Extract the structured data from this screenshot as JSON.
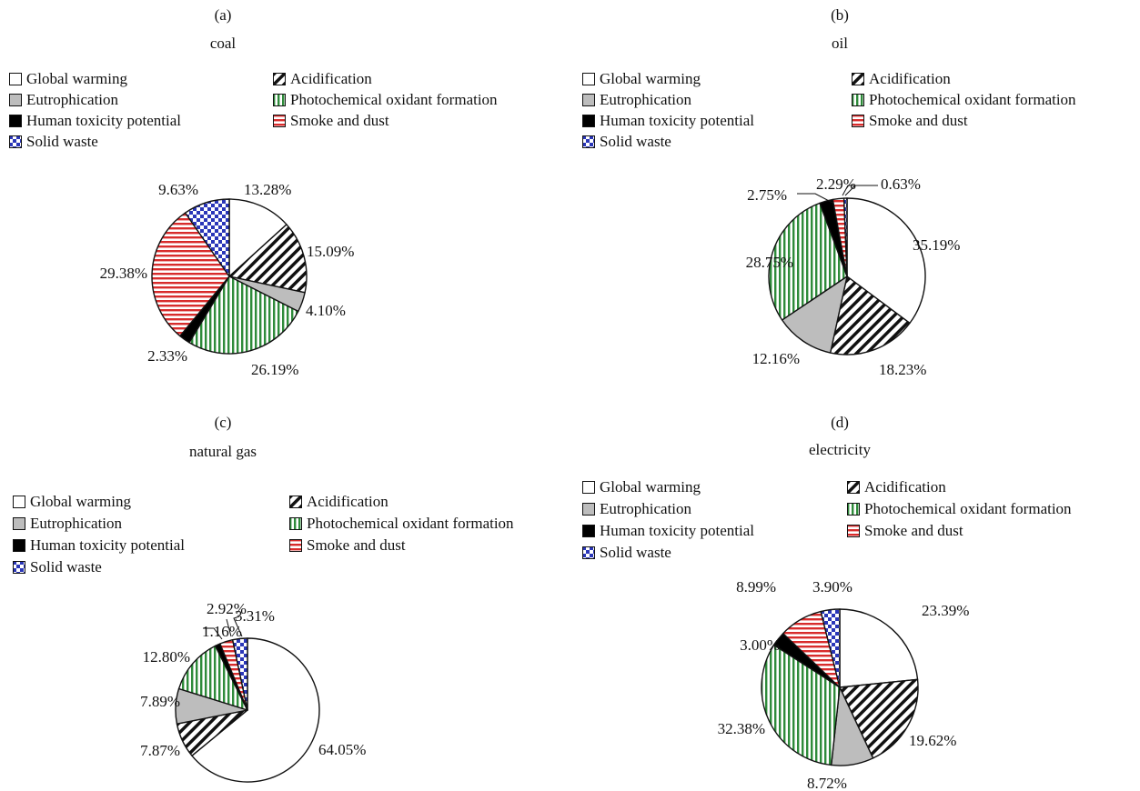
{
  "colors": {
    "global_warming": "#ffffff",
    "acidification": "#111111",
    "eutrophication": "#bdbdbd",
    "photochemical": "#2e8b3a",
    "human_toxicity": "#000000",
    "smoke_dust": "#d82c2c",
    "solid_waste": "#2a36b8"
  },
  "legend_labels": [
    "Global warming",
    "Acidification",
    "Eutrophication",
    "Photochemical oxidant formation",
    "Human toxicity potential",
    "Smoke and dust",
    "Solid waste"
  ],
  "chart_data": [
    {
      "type": "pie",
      "panel_letter": "(a)",
      "title": "coal",
      "legend_placement": "top",
      "slices": [
        {
          "category": "Global warming",
          "value": 13.28,
          "label": "13.28%"
        },
        {
          "category": "Acidification",
          "value": 15.09,
          "label": "15.09%"
        },
        {
          "category": "Eutrophication",
          "value": 4.1,
          "label": "4.10%"
        },
        {
          "category": "Photochemical oxidant formation",
          "value": 26.19,
          "label": "26.19%"
        },
        {
          "category": "Human toxicity potential",
          "value": 2.33,
          "label": "2.33%"
        },
        {
          "category": "Smoke and dust",
          "value": 29.38,
          "label": "29.38%"
        },
        {
          "category": "Solid waste",
          "value": 9.63,
          "label": "9.63%"
        }
      ]
    },
    {
      "type": "pie",
      "panel_letter": "(b)",
      "title": "oil",
      "legend_placement": "top",
      "slices": [
        {
          "category": "Global warming",
          "value": 35.19,
          "label": "35.19%"
        },
        {
          "category": "Acidification",
          "value": 18.23,
          "label": "18.23%"
        },
        {
          "category": "Eutrophication",
          "value": 12.16,
          "label": "12.16%"
        },
        {
          "category": "Photochemical oxidant formation",
          "value": 28.75,
          "label": "28.75%"
        },
        {
          "category": "Human toxicity potential",
          "value": 2.75,
          "label": "2.75%"
        },
        {
          "category": "Smoke and dust",
          "value": 2.29,
          "label": "2.29%"
        },
        {
          "category": "Solid waste",
          "value": 0.63,
          "label": "0.63%"
        }
      ]
    },
    {
      "type": "pie",
      "panel_letter": "(c)",
      "title": "natural gas",
      "legend_placement": "top",
      "slices": [
        {
          "category": "Global warming",
          "value": 64.05,
          "label": "64.05%"
        },
        {
          "category": "Acidification",
          "value": 7.87,
          "label": "7.87%"
        },
        {
          "category": "Eutrophication",
          "value": 7.89,
          "label": "7.89%"
        },
        {
          "category": "Photochemical oxidant formation",
          "value": 12.8,
          "label": "12.80%"
        },
        {
          "category": "Human toxicity potential",
          "value": 1.16,
          "label": "1.16%"
        },
        {
          "category": "Smoke and dust",
          "value": 2.92,
          "label": "2.92%"
        },
        {
          "category": "Solid waste",
          "value": 3.31,
          "label": "3.31%"
        }
      ]
    },
    {
      "type": "pie",
      "panel_letter": "(d)",
      "title": "electricity",
      "legend_placement": "top",
      "slices": [
        {
          "category": "Global warming",
          "value": 23.39,
          "label": "23.39%"
        },
        {
          "category": "Acidification",
          "value": 19.62,
          "label": "19.62%"
        },
        {
          "category": "Eutrophication",
          "value": 8.72,
          "label": "8.72%"
        },
        {
          "category": "Photochemical oxidant formation",
          "value": 32.38,
          "label": "32.38%"
        },
        {
          "category": "Human toxicity potential",
          "value": 3.0,
          "label": "3.00%"
        },
        {
          "category": "Smoke and dust",
          "value": 8.99,
          "label": "8.99%"
        },
        {
          "category": "Solid waste",
          "value": 3.9,
          "label": "3.90%"
        }
      ]
    }
  ]
}
